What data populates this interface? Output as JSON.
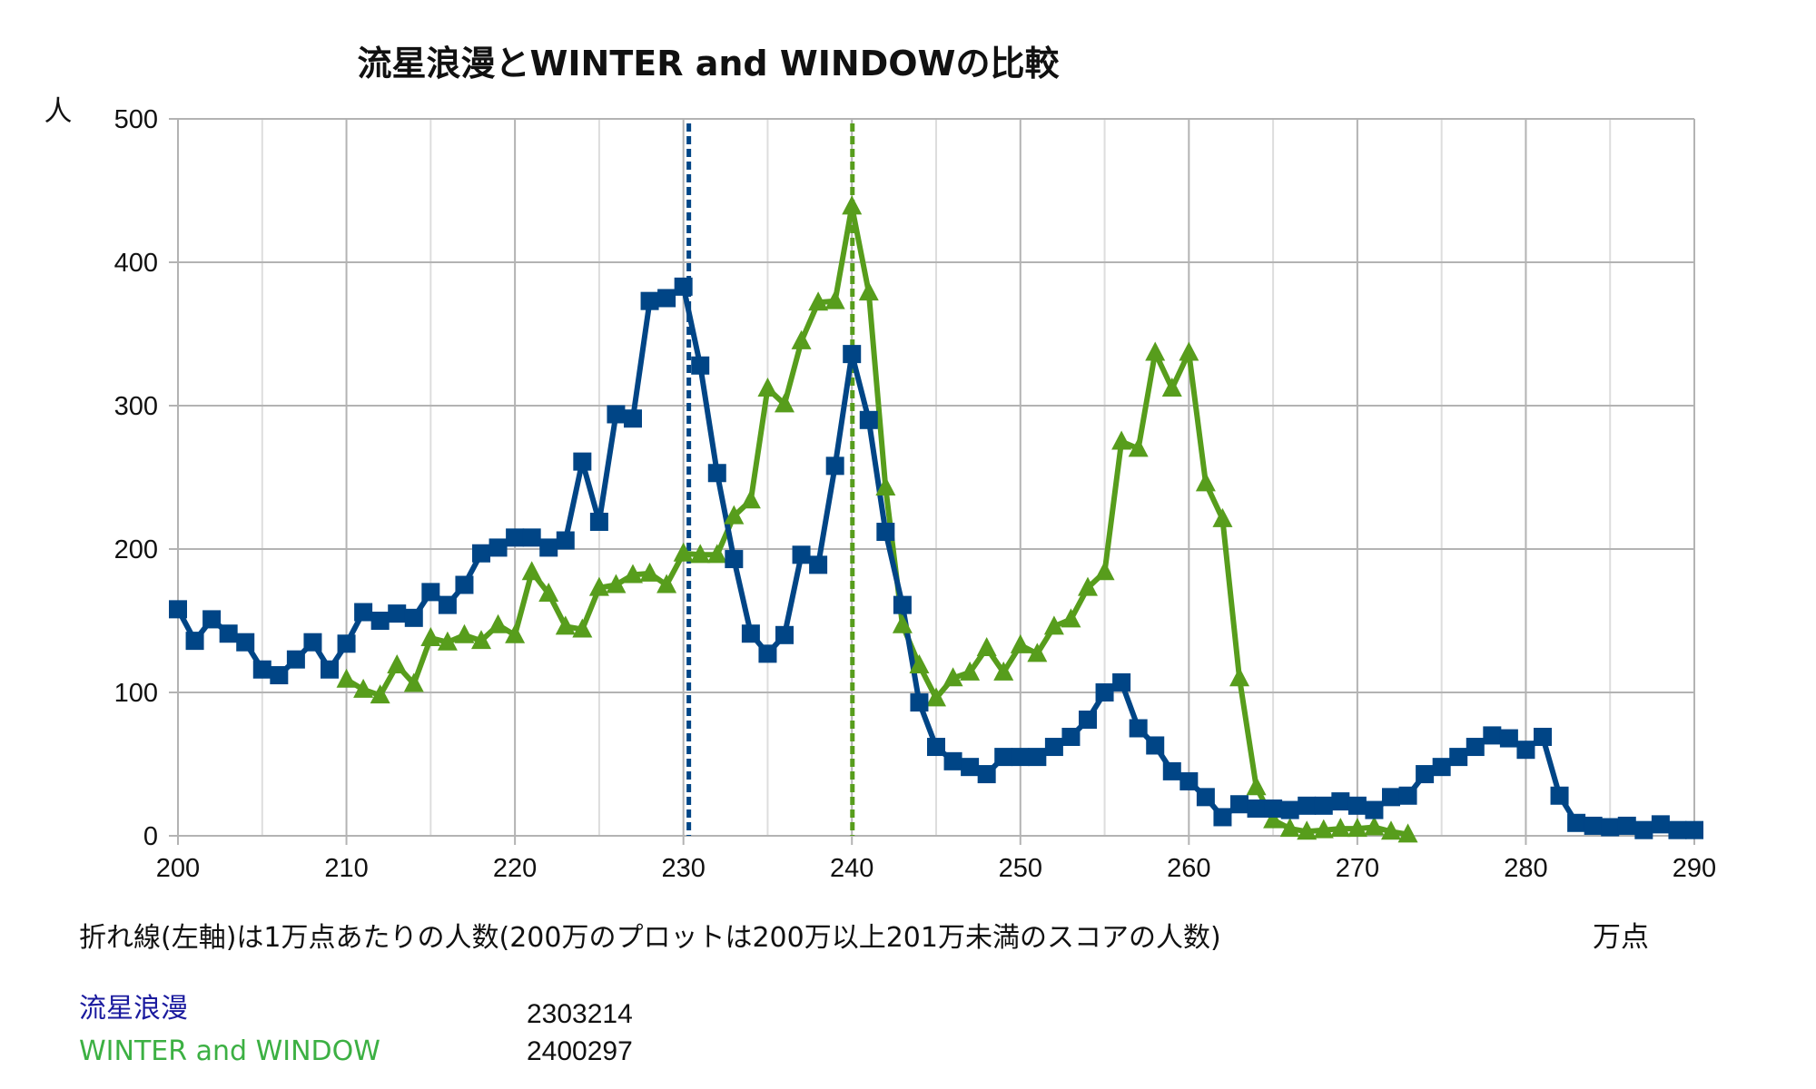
{
  "chart_data": {
    "type": "line",
    "title": "流星浪漫とWINTER and WINDOWの比較",
    "ylabel": "人",
    "xlabel": "万点",
    "note": "折れ線(左軸)は1万点あたりの人数(200万のプロットは200万以上201万未満のスコアの人数)",
    "xlim": [
      200,
      290
    ],
    "ylim": [
      0,
      500
    ],
    "x_ticks": [
      "200",
      "210",
      "220",
      "230",
      "240",
      "250",
      "260",
      "270",
      "280",
      "290"
    ],
    "y_ticks": [
      "0",
      "100",
      "200",
      "300",
      "400",
      "500"
    ],
    "x_grid_step": 5,
    "grid": true,
    "series": [
      {
        "name": "流星浪漫",
        "label_color": "#1a1a9e",
        "color": "#004586",
        "marker": "square",
        "reference_line": 230.3214,
        "reference_value": "2303214",
        "x": [
          200,
          201,
          202,
          203,
          204,
          205,
          206,
          207,
          208,
          209,
          210,
          211,
          212,
          213,
          214,
          215,
          216,
          217,
          218,
          219,
          220,
          221,
          222,
          223,
          224,
          225,
          226,
          227,
          228,
          229,
          230,
          231,
          232,
          233,
          234,
          235,
          236,
          237,
          238,
          239,
          240,
          241,
          242,
          243,
          244,
          245,
          246,
          247,
          248,
          249,
          250,
          251,
          252,
          253,
          254,
          255,
          256,
          257,
          258,
          259,
          260,
          261,
          262,
          263,
          264,
          265,
          266,
          267,
          268,
          269,
          270,
          271,
          272,
          273,
          274,
          275,
          276,
          277,
          278,
          279,
          280,
          281,
          282,
          283,
          284,
          285,
          286,
          287,
          288,
          289,
          290
        ],
        "values": [
          158,
          136,
          151,
          141,
          135,
          116,
          112,
          123,
          135,
          116,
          134,
          156,
          150,
          155,
          152,
          170,
          161,
          175,
          197,
          201,
          208,
          208,
          201,
          206,
          261,
          219,
          294,
          291,
          373,
          375,
          383,
          328,
          253,
          193,
          141,
          127,
          140,
          196,
          189,
          258,
          336,
          290,
          212,
          161,
          93,
          62,
          52,
          48,
          43,
          55,
          55,
          55,
          62,
          69,
          81,
          100,
          107,
          75,
          63,
          45,
          38,
          27,
          13,
          22,
          19,
          19,
          18,
          21,
          21,
          24,
          21,
          18,
          27,
          28,
          43,
          48,
          55,
          62,
          70,
          68,
          60,
          69,
          28,
          9,
          7,
          6,
          7,
          4,
          8,
          4,
          4
        ]
      },
      {
        "name": "WINTER and WINDOW",
        "label_color": "#3cb043",
        "color": "#579d1c",
        "marker": "triangle",
        "reference_line": 240.0297,
        "reference_value": "2400297",
        "x": [
          210,
          211,
          212,
          213,
          214,
          215,
          216,
          217,
          218,
          219,
          220,
          221,
          222,
          223,
          224,
          225,
          226,
          227,
          228,
          229,
          230,
          231,
          232,
          233,
          234,
          235,
          236,
          237,
          238,
          239,
          240,
          241,
          242,
          243,
          244,
          245,
          246,
          247,
          248,
          249,
          250,
          251,
          252,
          253,
          254,
          255,
          256,
          257,
          258,
          259,
          260,
          261,
          262,
          263,
          264,
          265,
          266,
          267,
          268,
          269,
          270,
          271,
          272,
          273
        ],
        "values": [
          109,
          102,
          98,
          119,
          106,
          138,
          135,
          140,
          136,
          147,
          140,
          184,
          169,
          146,
          144,
          173,
          175,
          182,
          183,
          175,
          197,
          196,
          196,
          223,
          234,
          312,
          301,
          345,
          372,
          373,
          439,
          379,
          243,
          147,
          119,
          96,
          110,
          114,
          131,
          114,
          133,
          127,
          146,
          151,
          173,
          184,
          275,
          270,
          337,
          312,
          337,
          246,
          221,
          110,
          34,
          11,
          5,
          3,
          4,
          5,
          5,
          6,
          3,
          1
        ]
      }
    ]
  }
}
